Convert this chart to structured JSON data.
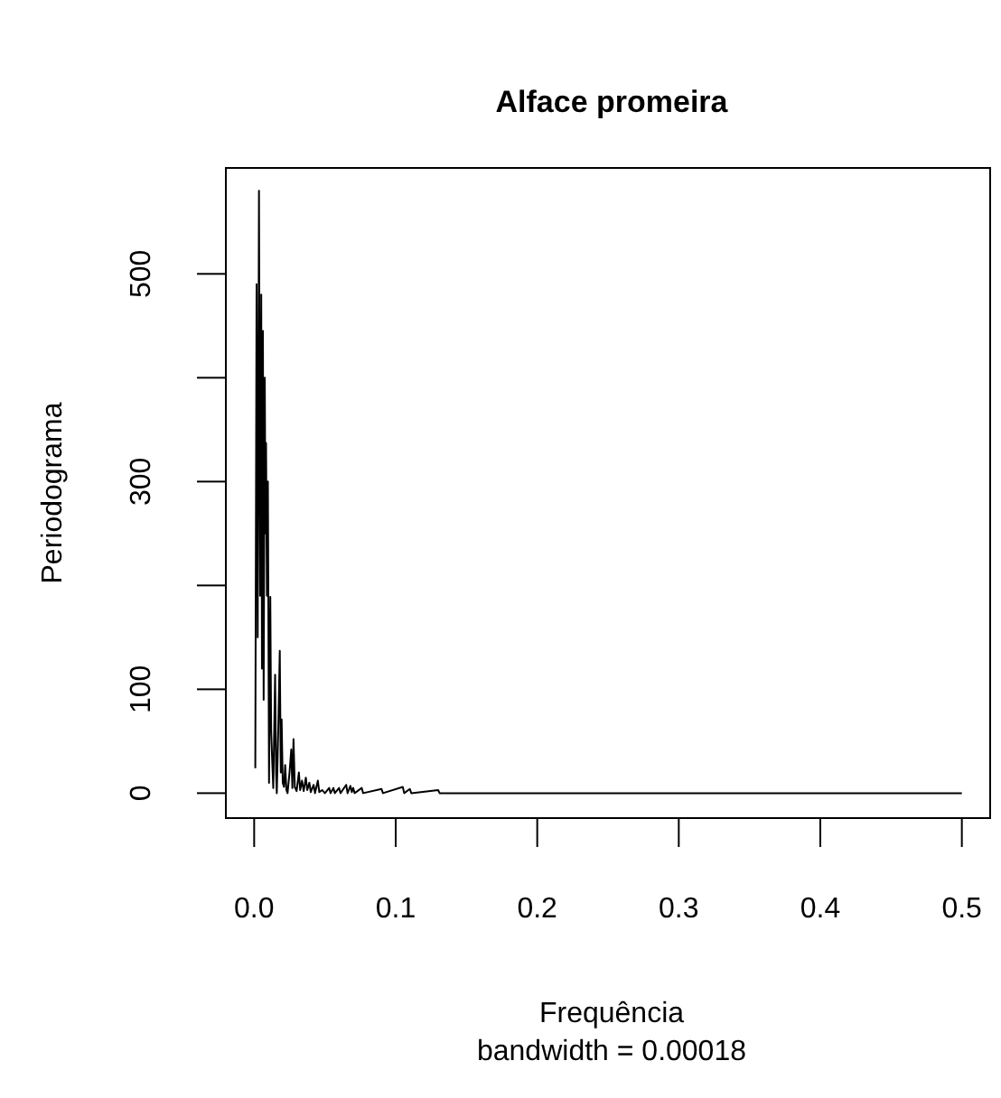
{
  "chart_data": {
    "type": "line",
    "title": "Alface promeira",
    "xlabel": "Frequência",
    "ylabel": "Periodograma",
    "annotations": [
      "bandwidth = 0.00018"
    ],
    "xlim": [
      -0.02,
      0.52
    ],
    "xticks": [
      {
        "value": 0,
        "label": "0.0"
      },
      0.1,
      0.2,
      0.3,
      0.4,
      0.5
    ],
    "ylim": [
      -24,
      602
    ],
    "yticks": [
      0,
      100,
      {
        "value": 200,
        "label": null
      },
      300,
      {
        "value": 400,
        "label": null
      },
      500
    ],
    "grid": false,
    "series": [
      {
        "color": "#000000",
        "x": [
          0.0008,
          0.0017,
          0.0025,
          0.0034,
          0.0042,
          0.005,
          0.0055,
          0.0062,
          0.0067,
          0.0075,
          0.008,
          0.0084,
          0.009,
          0.0097,
          0.0105,
          0.0114,
          0.012,
          0.0127,
          0.0135,
          0.0148,
          0.0155,
          0.016,
          0.017,
          0.0181,
          0.0188,
          0.0194,
          0.0202,
          0.0211,
          0.0219,
          0.0228,
          0.0236,
          0.025,
          0.0262,
          0.027,
          0.0278,
          0.0287,
          0.03,
          0.0316,
          0.0325,
          0.0338,
          0.035,
          0.0365,
          0.0375,
          0.039,
          0.04,
          0.042,
          0.043,
          0.045,
          0.046,
          0.048,
          0.05,
          0.053,
          0.054,
          0.056,
          0.057,
          0.06,
          0.061,
          0.065,
          0.066,
          0.068,
          0.069,
          0.07,
          0.071,
          0.076,
          0.077,
          0.09,
          0.091,
          0.105,
          0.106,
          0.11,
          0.111,
          0.13,
          0.131,
          0.2,
          0.3,
          0.4,
          0.5
        ],
        "values": [
          24,
          490,
          150,
          580,
          190,
          480,
          120,
          445,
          90,
          400,
          250,
          337,
          190,
          300,
          10,
          189,
          60,
          33,
          5,
          114,
          20,
          0,
          60,
          137,
          20,
          71,
          10,
          6,
          27,
          3,
          0,
          20,
          42,
          5,
          52,
          6,
          2,
          20,
          3,
          12,
          2,
          15,
          3,
          10,
          1,
          8,
          0,
          12,
          1,
          3,
          0,
          5,
          0,
          5,
          0,
          5,
          0,
          8,
          0,
          7,
          1,
          5,
          0,
          5,
          0,
          4,
          0,
          6,
          0,
          4,
          0,
          3,
          0,
          0,
          0,
          0,
          0
        ]
      }
    ]
  }
}
